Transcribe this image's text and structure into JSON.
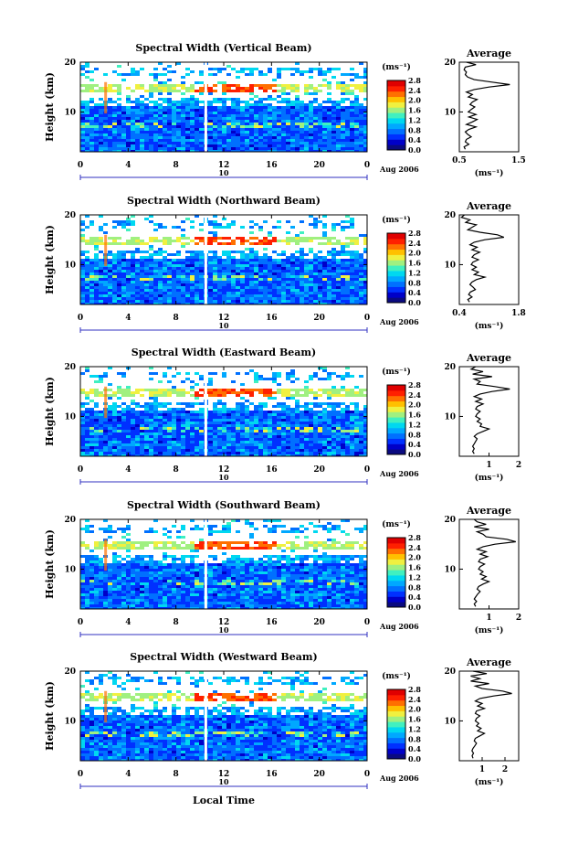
{
  "colorbar_colors": [
    "#0a0a80",
    "#0000c8",
    "#0030ff",
    "#0070ff",
    "#00a8ff",
    "#00d8f0",
    "#40f0c0",
    "#a0f080",
    "#f0f040",
    "#ffc000",
    "#ff7000",
    "#ff2000",
    "#e00000"
  ],
  "common": {
    "y_axis_label": "Height (km)",
    "x_axis_label": "Local Time",
    "day_label": "10",
    "month_label": "Aug 2006",
    "unit_label": "(ms⁻¹)",
    "avg_title": "Average",
    "avg_xlabel": "(ms⁻¹)"
  },
  "chart_data": [
    {
      "type": "heatmap",
      "title": "Spectral Width (Vertical Beam)",
      "x_ticks": [
        "0",
        "4",
        "8",
        "12",
        "16",
        "20",
        "0"
      ],
      "y_ticks": [
        "20",
        "10"
      ],
      "colorbar_ticks": [
        "2.8",
        "2.4",
        "2.0",
        "1.6",
        "1.2",
        "0.8",
        "0.4",
        "0.0"
      ],
      "xlim": [
        0,
        24
      ],
      "ylim": [
        2,
        20
      ],
      "colorbar_range": [
        0.0,
        2.8
      ],
      "avg_profile": {
        "xlim": [
          0.5,
          1.5
        ],
        "x_ticks": [
          "0.5",
          "1.5"
        ],
        "y_ticks": [
          "20",
          "10"
        ],
        "height": [
          20,
          19.5,
          19,
          18.5,
          18,
          17.5,
          17,
          16.5,
          16,
          15.5,
          15,
          14.5,
          14,
          13.5,
          13,
          12.5,
          12,
          11.5,
          11,
          10.5,
          10,
          9.5,
          9,
          8.5,
          8,
          7.5,
          7,
          6.5,
          6,
          5.5,
          5,
          4.5,
          4,
          3.5,
          3,
          2.5
        ],
        "width": [
          0.62,
          0.78,
          0.6,
          0.58,
          0.62,
          0.6,
          0.64,
          0.75,
          1.05,
          1.35,
          1.0,
          0.75,
          0.62,
          0.72,
          0.65,
          0.8,
          0.72,
          0.68,
          0.76,
          0.7,
          0.65,
          0.78,
          0.66,
          0.8,
          0.72,
          0.62,
          0.78,
          0.66,
          0.6,
          0.64,
          0.7,
          0.62,
          0.6,
          0.66,
          0.58,
          0.6
        ]
      }
    },
    {
      "type": "heatmap",
      "title": "Spectral Width (Northward Beam)",
      "x_ticks": [
        "0",
        "4",
        "8",
        "12",
        "16",
        "20",
        "0"
      ],
      "y_ticks": [
        "20",
        "10"
      ],
      "colorbar_ticks": [
        "2.8",
        "2.4",
        "2.0",
        "1.6",
        "1.2",
        "0.8",
        "0.4",
        "0.0"
      ],
      "xlim": [
        0,
        24
      ],
      "ylim": [
        2,
        20
      ],
      "colorbar_range": [
        0.0,
        2.8
      ],
      "avg_profile": {
        "xlim": [
          0.4,
          1.8
        ],
        "x_ticks": [
          "0.4",
          "1.8"
        ],
        "y_ticks": [
          "20",
          "10"
        ],
        "height": [
          20,
          19.5,
          19,
          18.5,
          18,
          17.5,
          17,
          16.5,
          16,
          15.5,
          15,
          14.5,
          14,
          13.5,
          13,
          12.5,
          12,
          11.5,
          11,
          10.5,
          10,
          9.5,
          9,
          8.5,
          8,
          7.5,
          7,
          6.5,
          6,
          5.5,
          5,
          4.5,
          4,
          3.5,
          3,
          2.5
        ],
        "width": [
          0.52,
          0.45,
          0.65,
          0.55,
          0.8,
          0.7,
          0.6,
          0.9,
          1.3,
          1.45,
          1.0,
          0.75,
          0.65,
          0.82,
          0.7,
          0.88,
          0.75,
          0.7,
          0.85,
          0.72,
          0.68,
          0.8,
          0.7,
          0.85,
          0.75,
          1.0,
          0.8,
          0.7,
          0.65,
          0.72,
          0.78,
          0.66,
          0.62,
          0.7,
          0.6,
          0.64
        ]
      }
    },
    {
      "type": "heatmap",
      "title": "Spectral Width (Eastward Beam)",
      "x_ticks": [
        "0",
        "4",
        "8",
        "12",
        "16",
        "20",
        "0"
      ],
      "y_ticks": [
        "20",
        "10"
      ],
      "colorbar_ticks": [
        "2.8",
        "2.4",
        "2.0",
        "1.6",
        "1.2",
        "0.8",
        "0.4",
        "0.0"
      ],
      "xlim": [
        0,
        24
      ],
      "ylim": [
        2,
        20
      ],
      "colorbar_range": [
        0.0,
        2.8
      ],
      "avg_profile": {
        "xlim": [
          0,
          2
        ],
        "x_ticks": [
          "1",
          "2"
        ],
        "y_ticks": [
          "20",
          "10"
        ],
        "height": [
          20,
          19.5,
          19,
          18.5,
          18,
          17.5,
          17,
          16.5,
          16,
          15.5,
          15,
          14.5,
          14,
          13.5,
          13,
          12.5,
          12,
          11.5,
          11,
          10.5,
          10,
          9.5,
          9,
          8.5,
          8,
          7.5,
          7,
          6.5,
          6,
          5.5,
          5,
          4.5,
          4,
          3.5,
          3,
          2.5
        ],
        "width": [
          0.55,
          0.4,
          0.8,
          0.45,
          1.1,
          0.5,
          0.7,
          0.6,
          1.2,
          1.7,
          1.1,
          0.7,
          0.5,
          0.75,
          0.55,
          0.8,
          0.6,
          0.55,
          0.7,
          0.6,
          0.55,
          0.7,
          0.6,
          0.75,
          0.7,
          1.0,
          0.8,
          0.6,
          0.5,
          0.6,
          0.55,
          0.5,
          0.45,
          0.5,
          0.45,
          0.5
        ]
      }
    },
    {
      "type": "heatmap",
      "title": "Spectral Width (Southward Beam)",
      "x_ticks": [
        "0",
        "4",
        "8",
        "12",
        "16",
        "20",
        "0"
      ],
      "y_ticks": [
        "20",
        "10"
      ],
      "colorbar_ticks": [
        "2.8",
        "2.4",
        "2.0",
        "1.6",
        "1.2",
        "0.8",
        "0.4",
        "0.0"
      ],
      "xlim": [
        0,
        24
      ],
      "ylim": [
        2,
        20
      ],
      "colorbar_range": [
        0.0,
        2.8
      ],
      "avg_profile": {
        "xlim": [
          0,
          2
        ],
        "x_ticks": [
          "1",
          "2"
        ],
        "y_ticks": [
          "20",
          "10"
        ],
        "height": [
          20,
          19.5,
          19,
          18.5,
          18,
          17.5,
          17,
          16.5,
          16,
          15.5,
          15,
          14.5,
          14,
          13.5,
          13,
          12.5,
          12,
          11.5,
          11,
          10.5,
          10,
          9.5,
          9,
          8.5,
          8,
          7.5,
          7,
          6.5,
          6,
          5.5,
          5,
          4.5,
          4,
          3.5,
          3,
          2.5
        ],
        "width": [
          0.5,
          0.6,
          0.9,
          0.5,
          1.0,
          0.6,
          0.8,
          0.9,
          1.6,
          1.9,
          1.2,
          0.8,
          0.6,
          0.9,
          0.7,
          0.95,
          0.7,
          0.65,
          0.85,
          0.7,
          0.65,
          0.8,
          0.7,
          0.9,
          0.75,
          1.0,
          0.8,
          0.65,
          0.6,
          0.7,
          0.62,
          0.56,
          0.5,
          0.58,
          0.5,
          0.55
        ]
      }
    },
    {
      "type": "heatmap",
      "title": "Spectral Width (Westward Beam)",
      "x_ticks": [
        "0",
        "4",
        "8",
        "12",
        "16",
        "20",
        "0"
      ],
      "y_ticks": [
        "20",
        "10"
      ],
      "colorbar_ticks": [
        "2.8",
        "2.4",
        "2.0",
        "1.6",
        "1.2",
        "0.8",
        "0.4",
        "0.0"
      ],
      "xlim": [
        0,
        24
      ],
      "ylim": [
        2,
        20
      ],
      "colorbar_range": [
        0.0,
        2.8
      ],
      "avg_profile": {
        "xlim": [
          0,
          2.6
        ],
        "x_ticks": [
          "1",
          "2"
        ],
        "y_ticks": [
          "20",
          "10"
        ],
        "height": [
          20,
          19.5,
          19,
          18.5,
          18,
          17.5,
          17,
          16.5,
          16,
          15.5,
          15,
          14.5,
          14,
          13.5,
          13,
          12.5,
          12,
          11.5,
          11,
          10.5,
          10,
          9.5,
          9,
          8.5,
          8,
          7.5,
          7,
          6.5,
          6,
          5.5,
          5,
          4.5,
          4,
          3.5,
          3,
          2.5
        ],
        "width": [
          0.6,
          1.2,
          0.5,
          0.9,
          0.5,
          1.3,
          0.7,
          1.0,
          1.9,
          2.3,
          1.5,
          0.9,
          0.7,
          1.0,
          0.8,
          1.1,
          0.75,
          0.7,
          0.9,
          0.75,
          0.7,
          0.85,
          0.75,
          0.95,
          0.8,
          1.1,
          0.9,
          0.7,
          0.65,
          0.75,
          0.68,
          0.6,
          0.55,
          0.62,
          0.56,
          0.6
        ]
      }
    }
  ]
}
